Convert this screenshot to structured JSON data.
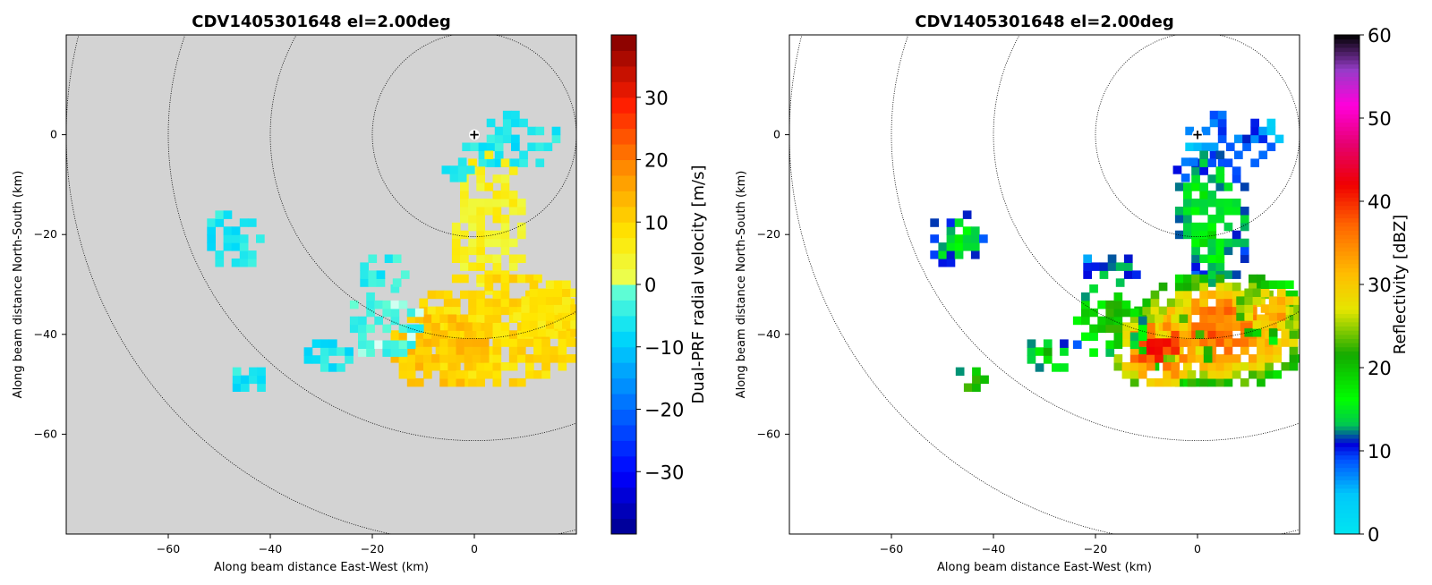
{
  "chart_data": [
    {
      "type": "heatmap",
      "title": "CDV1405301648 el=2.00deg",
      "xlabel": "Along beam distance East-West (km)",
      "ylabel": "Along beam distance North-South (km)",
      "xlim": [
        -80,
        20
      ],
      "ylim": [
        -80,
        20
      ],
      "xticks": [
        -60,
        -40,
        -20,
        0
      ],
      "yticks": [
        0,
        -20,
        -40,
        -60
      ],
      "range_rings_km": [
        20,
        40,
        60,
        80
      ],
      "radar_marker": "+",
      "background_color": "#d3d3d3",
      "colorbar": {
        "label": "Dual-PRF radial velocity [m/s]",
        "range": [
          -40,
          40
        ],
        "ticks": [
          30,
          20,
          10,
          0,
          -10,
          -20,
          -30
        ],
        "colormap": "blue-cyan-white-yellow-red (jet-like, white at 0)"
      },
      "echo_regions": [
        {
          "region": "near-radar north/east sector",
          "value_range_ms": [
            -8,
            -4
          ]
        },
        {
          "region": "main cell south of radar",
          "value_range_ms": [
            3,
            14
          ]
        },
        {
          "region": "western small echoes",
          "value_range_ms": [
            -8,
            -4
          ]
        }
      ]
    },
    {
      "type": "heatmap",
      "title": "CDV1405301648 el=2.00deg",
      "xlabel": "Along beam distance East-West (km)",
      "ylabel": "Along beam distance North-South (km)",
      "xlim": [
        -80,
        20
      ],
      "ylim": [
        -80,
        20
      ],
      "xticks": [
        -60,
        -40,
        -20,
        0
      ],
      "yticks": [
        0,
        -20,
        -40,
        -60
      ],
      "range_rings_km": [
        20,
        40,
        60,
        80
      ],
      "radar_marker": "+",
      "background_color": "#ffffff",
      "colorbar": {
        "label": "Reflectivity [dBZ]",
        "range": [
          0,
          60
        ],
        "ticks": [
          60,
          50,
          40,
          30,
          20,
          10,
          0
        ],
        "colormap": "cyan-blue-green-yellow-red-magenta-black"
      },
      "echo_regions": [
        {
          "region": "near-radar",
          "value_range_dbz": [
            2,
            12
          ]
        },
        {
          "region": "main cell core ~(-5,-42) km",
          "value_range_dbz": [
            30,
            42
          ]
        },
        {
          "region": "western small echoes",
          "value_range_dbz": [
            5,
            28
          ]
        }
      ]
    }
  ]
}
